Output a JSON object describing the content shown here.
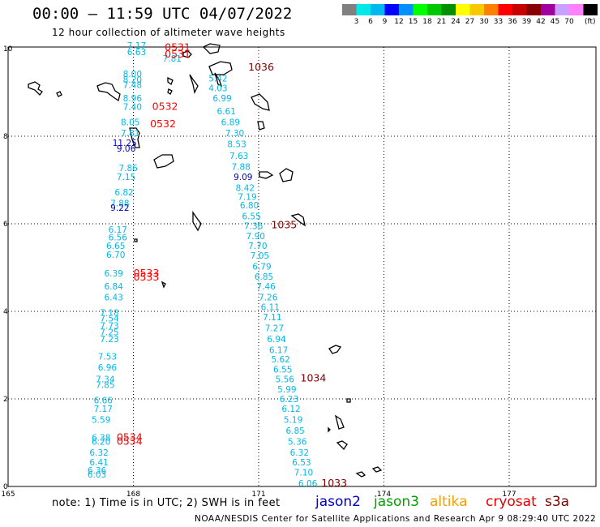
{
  "title": "00:00 – 11:59 UTC 04/07/2022",
  "subtitle": "12 hour collection of altimeter wave heights",
  "note": "note:  1) Time is in UTC;  2) SWH is in feet",
  "footer": "NOAA/NESDIS Center for Satellite Applications and Research    Apr  9 08:29:40 UTC 2022",
  "satellites": [
    {
      "id": "jason2",
      "label": "jason2",
      "color": "#0000cc"
    },
    {
      "id": "jason3",
      "label": "jason3",
      "color": "#00a000"
    },
    {
      "id": "altika",
      "label": "altika",
      "color": "#f0a000"
    },
    {
      "id": "cryosat",
      "label": "cryosat",
      "color": "#e00000"
    },
    {
      "id": "s3a",
      "label": "s3a",
      "color": "#800000"
    }
  ],
  "legend": {
    "unit": "(ft)",
    "bins": [
      {
        "label": "",
        "color": "#808080"
      },
      {
        "label": "3",
        "color": "#00e8e8"
      },
      {
        "label": "6",
        "color": "#00b8f0"
      },
      {
        "label": "9",
        "color": "#0000ff"
      },
      {
        "label": "12",
        "color": "#0090ff"
      },
      {
        "label": "15",
        "color": "#00ff00"
      },
      {
        "label": "18",
        "color": "#00c800"
      },
      {
        "label": "21",
        "color": "#009000"
      },
      {
        "label": "24",
        "color": "#ffff00"
      },
      {
        "label": "27",
        "color": "#f8c800"
      },
      {
        "label": "30",
        "color": "#ff8000"
      },
      {
        "label": "33",
        "color": "#ff0000"
      },
      {
        "label": "36",
        "color": "#c80000"
      },
      {
        "label": "39",
        "color": "#880000"
      },
      {
        "label": "42",
        "color": "#a000a0"
      },
      {
        "label": "45",
        "color": "#c8a0ff"
      },
      {
        "label": "70",
        "color": "#ff80ff"
      },
      {
        "label": "",
        "color": "#000000"
      }
    ]
  },
  "axes": {
    "lon_ticks": [
      "165",
      "168",
      "171",
      "174",
      "177"
    ],
    "lat_ticks": [
      "0",
      "2",
      "4",
      "6",
      "8",
      "10"
    ],
    "lon_range": [
      165,
      179.0
    ],
    "lat_range": [
      0,
      10.2
    ]
  },
  "track_colors": {
    "cyan": "#00b8e8",
    "blue": "#0000c0",
    "red": "#ff0000",
    "darkred": "#800000"
  },
  "track_time_labels": [
    {
      "text": "0531",
      "lon": 168.75,
      "lat": 9.95,
      "color": "red"
    },
    {
      "text": "0531",
      "lon": 168.75,
      "lat": 9.8,
      "color": "red"
    },
    {
      "text": "1036",
      "lon": 170.75,
      "lat": 9.5,
      "color": "darkred"
    },
    {
      "text": "0532",
      "lon": 168.45,
      "lat": 8.6,
      "color": "red"
    },
    {
      "text": "0532",
      "lon": 168.4,
      "lat": 8.2,
      "color": "red"
    },
    {
      "text": "1035",
      "lon": 171.3,
      "lat": 5.9,
      "color": "darkred"
    },
    {
      "text": "0533",
      "lon": 168.0,
      "lat": 4.8,
      "color": "red"
    },
    {
      "text": "0533",
      "lon": 168.0,
      "lat": 4.7,
      "color": "red"
    },
    {
      "text": "1034",
      "lon": 172.0,
      "lat": 2.4,
      "color": "darkred"
    },
    {
      "text": "0534",
      "lon": 167.6,
      "lat": 1.05,
      "color": "red"
    },
    {
      "text": "0534",
      "lon": 167.6,
      "lat": 0.95,
      "color": "red"
    },
    {
      "text": "1033",
      "lon": 172.5,
      "lat": 0.0,
      "color": "darkred"
    }
  ],
  "swh_values": [
    {
      "text": "7.17",
      "lon": 167.85,
      "lat": 10.0,
      "color": "cyan"
    },
    {
      "text": "6.63",
      "lon": 167.85,
      "lat": 9.85,
      "color": "cyan"
    },
    {
      "text": "7.81",
      "lon": 168.7,
      "lat": 9.7,
      "color": "cyan"
    },
    {
      "text": "8.00",
      "lon": 167.75,
      "lat": 9.35,
      "color": "cyan"
    },
    {
      "text": "8.20",
      "lon": 167.75,
      "lat": 9.22,
      "color": "cyan"
    },
    {
      "text": "7.48",
      "lon": 167.75,
      "lat": 9.1,
      "color": "cyan"
    },
    {
      "text": "5.42",
      "lon": 169.8,
      "lat": 9.25,
      "color": "cyan"
    },
    {
      "text": "4.03",
      "lon": 169.8,
      "lat": 9.03,
      "color": "cyan"
    },
    {
      "text": "8.96",
      "lon": 167.75,
      "lat": 8.8,
      "color": "cyan"
    },
    {
      "text": "7.40",
      "lon": 167.75,
      "lat": 8.6,
      "color": "cyan"
    },
    {
      "text": "6.99",
      "lon": 169.9,
      "lat": 8.8,
      "color": "cyan"
    },
    {
      "text": "6.61",
      "lon": 170.0,
      "lat": 8.5,
      "color": "cyan"
    },
    {
      "text": "8.05",
      "lon": 167.7,
      "lat": 8.25,
      "color": "cyan"
    },
    {
      "text": "6.89",
      "lon": 170.1,
      "lat": 8.25,
      "color": "cyan"
    },
    {
      "text": "7.81",
      "lon": 167.7,
      "lat": 8.0,
      "color": "cyan"
    },
    {
      "text": "7.30",
      "lon": 170.2,
      "lat": 8.0,
      "color": "cyan"
    },
    {
      "text": "11.25",
      "lon": 167.5,
      "lat": 7.78,
      "color": "blue"
    },
    {
      "text": "9.06",
      "lon": 167.6,
      "lat": 7.65,
      "color": "blue"
    },
    {
      "text": "8.53",
      "lon": 170.25,
      "lat": 7.75,
      "color": "cyan"
    },
    {
      "text": "7.63",
      "lon": 170.3,
      "lat": 7.48,
      "color": "cyan"
    },
    {
      "text": "7.86",
      "lon": 167.65,
      "lat": 7.2,
      "color": "cyan"
    },
    {
      "text": "7.88",
      "lon": 170.35,
      "lat": 7.23,
      "color": "cyan"
    },
    {
      "text": "7.15",
      "lon": 167.6,
      "lat": 7.0,
      "color": "cyan"
    },
    {
      "text": "9.09",
      "lon": 170.4,
      "lat": 7.0,
      "color": "blue"
    },
    {
      "text": "8.42",
      "lon": 170.45,
      "lat": 6.75,
      "color": "cyan"
    },
    {
      "text": "6.82",
      "lon": 167.55,
      "lat": 6.65,
      "color": "cyan"
    },
    {
      "text": "7.19",
      "lon": 170.5,
      "lat": 6.55,
      "color": "cyan"
    },
    {
      "text": "7.88",
      "lon": 167.45,
      "lat": 6.4,
      "color": "cyan"
    },
    {
      "text": "9.22",
      "lon": 167.45,
      "lat": 6.3,
      "color": "blue"
    },
    {
      "text": "6.80",
      "lon": 170.55,
      "lat": 6.35,
      "color": "cyan"
    },
    {
      "text": "6.55",
      "lon": 170.6,
      "lat": 6.1,
      "color": "cyan"
    },
    {
      "text": "7.36",
      "lon": 170.65,
      "lat": 5.88,
      "color": "cyan"
    },
    {
      "text": "6.17",
      "lon": 167.4,
      "lat": 5.8,
      "color": "cyan"
    },
    {
      "text": "6.56",
      "lon": 167.4,
      "lat": 5.62,
      "color": "cyan"
    },
    {
      "text": "7.90",
      "lon": 170.7,
      "lat": 5.65,
      "color": "cyan"
    },
    {
      "text": "6.65",
      "lon": 167.35,
      "lat": 5.43,
      "color": "cyan"
    },
    {
      "text": "7.70",
      "lon": 170.75,
      "lat": 5.43,
      "color": "cyan"
    },
    {
      "text": "6.70",
      "lon": 167.35,
      "lat": 5.22,
      "color": "cyan"
    },
    {
      "text": "7.05",
      "lon": 170.8,
      "lat": 5.2,
      "color": "cyan"
    },
    {
      "text": "6.79",
      "lon": 170.85,
      "lat": 4.95,
      "color": "cyan"
    },
    {
      "text": "6.39",
      "lon": 167.3,
      "lat": 4.8,
      "color": "cyan"
    },
    {
      "text": "6.85",
      "lon": 170.9,
      "lat": 4.72,
      "color": "cyan"
    },
    {
      "text": "6.84",
      "lon": 167.3,
      "lat": 4.5,
      "color": "cyan"
    },
    {
      "text": "7.46",
      "lon": 170.95,
      "lat": 4.5,
      "color": "cyan"
    },
    {
      "text": "6.43",
      "lon": 167.3,
      "lat": 4.25,
      "color": "cyan"
    },
    {
      "text": "7.26",
      "lon": 171.0,
      "lat": 4.25,
      "color": "cyan"
    },
    {
      "text": "6.11",
      "lon": 171.05,
      "lat": 4.03,
      "color": "cyan"
    },
    {
      "text": "7.18",
      "lon": 167.2,
      "lat": 3.9,
      "color": "cyan"
    },
    {
      "text": "7.54",
      "lon": 167.2,
      "lat": 3.77,
      "color": "cyan"
    },
    {
      "text": "7.11",
      "lon": 171.1,
      "lat": 3.8,
      "color": "cyan"
    },
    {
      "text": "7.73",
      "lon": 167.2,
      "lat": 3.6,
      "color": "cyan"
    },
    {
      "text": "7.25",
      "lon": 167.2,
      "lat": 3.45,
      "color": "cyan"
    },
    {
      "text": "7.27",
      "lon": 171.15,
      "lat": 3.55,
      "color": "cyan"
    },
    {
      "text": "7.23",
      "lon": 167.2,
      "lat": 3.3,
      "color": "cyan"
    },
    {
      "text": "6.94",
      "lon": 171.2,
      "lat": 3.3,
      "color": "cyan"
    },
    {
      "text": "6.17",
      "lon": 171.25,
      "lat": 3.05,
      "color": "cyan"
    },
    {
      "text": "7.53",
      "lon": 167.15,
      "lat": 2.9,
      "color": "cyan"
    },
    {
      "text": "5.62",
      "lon": 171.3,
      "lat": 2.83,
      "color": "cyan"
    },
    {
      "text": "6.96",
      "lon": 167.15,
      "lat": 2.65,
      "color": "cyan"
    },
    {
      "text": "6.55",
      "lon": 171.35,
      "lat": 2.6,
      "color": "cyan"
    },
    {
      "text": "7.34",
      "lon": 167.1,
      "lat": 2.38,
      "color": "cyan"
    },
    {
      "text": "7.85",
      "lon": 167.1,
      "lat": 2.25,
      "color": "cyan"
    },
    {
      "text": "5.56",
      "lon": 171.4,
      "lat": 2.38,
      "color": "cyan"
    },
    {
      "text": "5.99",
      "lon": 171.45,
      "lat": 2.15,
      "color": "cyan"
    },
    {
      "text": "6.66",
      "lon": 167.05,
      "lat": 1.9,
      "color": "cyan"
    },
    {
      "text": "6.23",
      "lon": 171.5,
      "lat": 1.93,
      "color": "cyan"
    },
    {
      "text": "7.17",
      "lon": 167.05,
      "lat": 1.7,
      "color": "cyan"
    },
    {
      "text": "6.12",
      "lon": 171.55,
      "lat": 1.7,
      "color": "cyan"
    },
    {
      "text": "5.59",
      "lon": 167.0,
      "lat": 1.45,
      "color": "cyan"
    },
    {
      "text": "5.19",
      "lon": 171.6,
      "lat": 1.45,
      "color": "cyan"
    },
    {
      "text": "6.85",
      "lon": 171.65,
      "lat": 1.2,
      "color": "cyan"
    },
    {
      "text": "6.38",
      "lon": 167.0,
      "lat": 1.05,
      "color": "cyan"
    },
    {
      "text": "6.20",
      "lon": 167.0,
      "lat": 0.95,
      "color": "cyan"
    },
    {
      "text": "5.36",
      "lon": 171.7,
      "lat": 0.95,
      "color": "cyan"
    },
    {
      "text": "6.32",
      "lon": 166.95,
      "lat": 0.7,
      "color": "cyan"
    },
    {
      "text": "6.32",
      "lon": 171.75,
      "lat": 0.7,
      "color": "cyan"
    },
    {
      "text": "6.41",
      "lon": 166.95,
      "lat": 0.48,
      "color": "cyan"
    },
    {
      "text": "6.53",
      "lon": 171.8,
      "lat": 0.48,
      "color": "cyan"
    },
    {
      "text": "6.36",
      "lon": 166.9,
      "lat": 0.3,
      "color": "cyan"
    },
    {
      "text": "6.03",
      "lon": 166.9,
      "lat": 0.2,
      "color": "cyan"
    },
    {
      "text": "7.10",
      "lon": 171.85,
      "lat": 0.25,
      "color": "cyan"
    },
    {
      "text": "6.06",
      "lon": 171.95,
      "lat": 0.0,
      "color": "cyan"
    }
  ]
}
